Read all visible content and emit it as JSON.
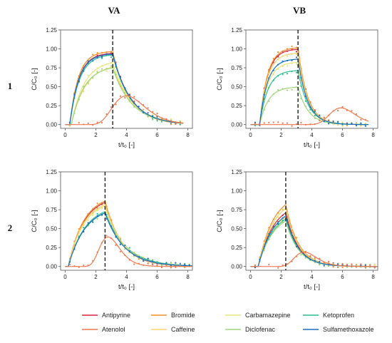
{
  "column_headers": [
    "VA",
    "VB"
  ],
  "row_headers": [
    "1",
    "2"
  ],
  "axis_labels": {
    "x": "t/t₀ [-]",
    "y": "C/C₀ [-]"
  },
  "legend": [
    {
      "name": "Antipyrine",
      "color": "#d7263d"
    },
    {
      "name": "Bromide",
      "color": "#f28e2b"
    },
    {
      "name": "Carbamazepine",
      "color": "#e6e67a"
    },
    {
      "name": "Ketoprofen",
      "color": "#2bbf8a"
    },
    {
      "name": "Atenolol",
      "color": "#f07850"
    },
    {
      "name": "Caffeine",
      "color": "#f5d76e"
    },
    {
      "name": "Diclofenac",
      "color": "#9ed67b"
    },
    {
      "name": "Sulfamethoxazole",
      "color": "#1a6fc4"
    }
  ],
  "chart_data": [
    {
      "type": "line",
      "panel": "VA-1",
      "column": "VA",
      "row": "1",
      "xlim": [
        -0.3,
        8.3
      ],
      "ylim": [
        -0.05,
        1.25
      ],
      "xticks": [
        0,
        2,
        4,
        6,
        8
      ],
      "yticks": [
        0.0,
        0.25,
        0.5,
        0.75,
        1.0,
        1.25
      ],
      "x_tick_labels": [
        "0",
        "2",
        "4",
        "6",
        "8"
      ],
      "y_tick_labels": [
        "0.00",
        "0.25",
        "0.50",
        "0.75",
        "1.00",
        "1.25"
      ],
      "pulse_end": 3.1,
      "x_end": 7.7,
      "grid": false,
      "series": [
        {
          "name": "Antipyrine",
          "plateau": 0.95,
          "t_start": 0.3,
          "k_rise": 1.7,
          "k_fall": 0.85
        },
        {
          "name": "Bromide",
          "plateau": 0.97,
          "t_start": 0.3,
          "k_rise": 1.8,
          "k_fall": 0.9
        },
        {
          "name": "Carbamazepine",
          "plateau": 0.85,
          "t_start": 0.4,
          "k_rise": 1.2,
          "k_fall": 0.8
        },
        {
          "name": "Ketoprofen",
          "plateau": 0.93,
          "t_start": 0.3,
          "k_rise": 1.6,
          "k_fall": 0.85
        },
        {
          "name": "Caffeine",
          "plateau": 0.8,
          "t_start": 0.4,
          "k_rise": 1.1,
          "k_fall": 0.75
        },
        {
          "name": "Diclofenac",
          "plateau": 0.78,
          "t_start": 0.4,
          "k_rise": 1.2,
          "k_fall": 0.8
        },
        {
          "name": "Sulfamethoxazole",
          "plateau": 0.94,
          "t_start": 0.3,
          "k_rise": 1.7,
          "k_fall": 0.85
        },
        {
          "name": "Atenolol",
          "peak": 0.38,
          "peak_x": 4.0,
          "t_start": 0.3,
          "spread": 1.9
        }
      ]
    },
    {
      "type": "line",
      "panel": "VB-1",
      "column": "VB",
      "row": "1",
      "xlim": [
        -0.3,
        8.3
      ],
      "ylim": [
        -0.05,
        1.25
      ],
      "xticks": [
        0,
        2,
        4,
        6,
        8
      ],
      "yticks": [
        0.0,
        0.25,
        0.5,
        0.75,
        1.0,
        1.25
      ],
      "x_tick_labels": [
        "0",
        "2",
        "4",
        "6",
        "8"
      ],
      "y_tick_labels": [
        "0.00",
        "0.25",
        "0.50",
        "0.75",
        "1.00",
        "1.25"
      ],
      "pulse_end": 3.1,
      "x_end": 7.7,
      "grid": false,
      "series": [
        {
          "name": "Antipyrine",
          "plateau": 1.0,
          "t_start": 0.6,
          "k_rise": 2.0,
          "k_fall": 1.6
        },
        {
          "name": "Bromide",
          "plateau": 1.02,
          "t_start": 0.6,
          "k_rise": 2.0,
          "k_fall": 1.6
        },
        {
          "name": "Carbamazepine",
          "plateau": 0.83,
          "t_start": 0.6,
          "k_rise": 1.9,
          "k_fall": 1.5
        },
        {
          "name": "Ketoprofen",
          "plateau": 0.72,
          "t_start": 0.6,
          "k_rise": 1.9,
          "k_fall": 1.5
        },
        {
          "name": "Caffeine",
          "plateau": 0.95,
          "t_start": 0.6,
          "k_rise": 2.0,
          "k_fall": 1.6
        },
        {
          "name": "Diclofenac",
          "plateau": 0.5,
          "t_start": 0.6,
          "k_rise": 1.8,
          "k_fall": 1.5
        },
        {
          "name": "Sulfamethoxazole",
          "plateau": 0.87,
          "t_start": 0.6,
          "k_rise": 2.0,
          "k_fall": 1.6
        },
        {
          "name": "Atenolol",
          "peak": 0.22,
          "peak_x": 5.9,
          "t_start": 2.0,
          "spread": 1.5
        }
      ]
    },
    {
      "type": "line",
      "panel": "VA-2",
      "column": "VA",
      "row": "2",
      "xlim": [
        -0.3,
        8.3
      ],
      "ylim": [
        -0.05,
        1.25
      ],
      "xticks": [
        0,
        2,
        4,
        6,
        8
      ],
      "yticks": [
        0.0,
        0.25,
        0.5,
        0.75,
        1.0,
        1.25
      ],
      "x_tick_labels": [
        "0",
        "2",
        "4",
        "6",
        "8"
      ],
      "y_tick_labels": [
        "0.00",
        "0.25",
        "0.50",
        "0.75",
        "1.00",
        "1.25"
      ],
      "pulse_end": 2.6,
      "x_end": 8.3,
      "grid": false,
      "series": [
        {
          "name": "Antipyrine",
          "plateau": 0.93,
          "t_start": 0.2,
          "k_rise": 1.0,
          "k_fall": 0.9
        },
        {
          "name": "Bromide",
          "plateau": 0.95,
          "t_start": 0.2,
          "k_rise": 1.0,
          "k_fall": 0.9
        },
        {
          "name": "Carbamazepine",
          "plateau": 0.88,
          "t_start": 0.2,
          "k_rise": 1.0,
          "k_fall": 0.85
        },
        {
          "name": "Ketoprofen",
          "plateau": 0.82,
          "t_start": 0.2,
          "k_rise": 0.9,
          "k_fall": 0.75
        },
        {
          "name": "Caffeine",
          "plateau": 0.9,
          "t_start": 0.2,
          "k_rise": 1.0,
          "k_fall": 0.85
        },
        {
          "name": "Diclofenac",
          "plateau": 0.8,
          "t_start": 0.2,
          "k_rise": 0.9,
          "k_fall": 0.8
        },
        {
          "name": "Sulfamethoxazole",
          "plateau": 0.8,
          "t_start": 0.2,
          "k_rise": 0.9,
          "k_fall": 0.8
        },
        {
          "name": "Atenolol",
          "peak": 0.39,
          "peak_x": 2.8,
          "t_start": 0.3,
          "spread": 1.2
        }
      ]
    },
    {
      "type": "line",
      "panel": "VB-2",
      "column": "VB",
      "row": "2",
      "xlim": [
        -0.3,
        8.3
      ],
      "ylim": [
        -0.05,
        1.25
      ],
      "xticks": [
        0,
        2,
        4,
        6,
        8
      ],
      "yticks": [
        0.0,
        0.25,
        0.5,
        0.75,
        1.0,
        1.25
      ],
      "x_tick_labels": [
        "0",
        "2",
        "4",
        "6",
        "8"
      ],
      "y_tick_labels": [
        "0.00",
        "0.25",
        "0.50",
        "0.75",
        "1.00",
        "1.25"
      ],
      "pulse_end": 2.3,
      "x_end": 8.3,
      "grid": false,
      "series": [
        {
          "name": "Antipyrine",
          "plateau": 0.85,
          "t_start": 0.5,
          "k_rise": 1.0,
          "k_fall": 1.2
        },
        {
          "name": "Bromide",
          "plateau": 0.98,
          "t_start": 0.5,
          "k_rise": 1.0,
          "k_fall": 1.2
        },
        {
          "name": "Carbamazepine",
          "plateau": 0.78,
          "t_start": 0.5,
          "k_rise": 1.0,
          "k_fall": 1.2
        },
        {
          "name": "Ketoprofen",
          "plateau": 0.75,
          "t_start": 0.5,
          "k_rise": 1.0,
          "k_fall": 1.2
        },
        {
          "name": "Caffeine",
          "plateau": 0.92,
          "t_start": 0.5,
          "k_rise": 1.0,
          "k_fall": 1.2
        },
        {
          "name": "Diclofenac",
          "plateau": 0.72,
          "t_start": 0.5,
          "k_rise": 1.0,
          "k_fall": 1.2
        },
        {
          "name": "Sulfamethoxazole",
          "plateau": 0.8,
          "t_start": 0.5,
          "k_rise": 1.0,
          "k_fall": 1.2
        },
        {
          "name": "Atenolol",
          "peak": 0.19,
          "peak_x": 3.5,
          "t_start": 0.6,
          "spread": 1.3
        }
      ]
    }
  ]
}
